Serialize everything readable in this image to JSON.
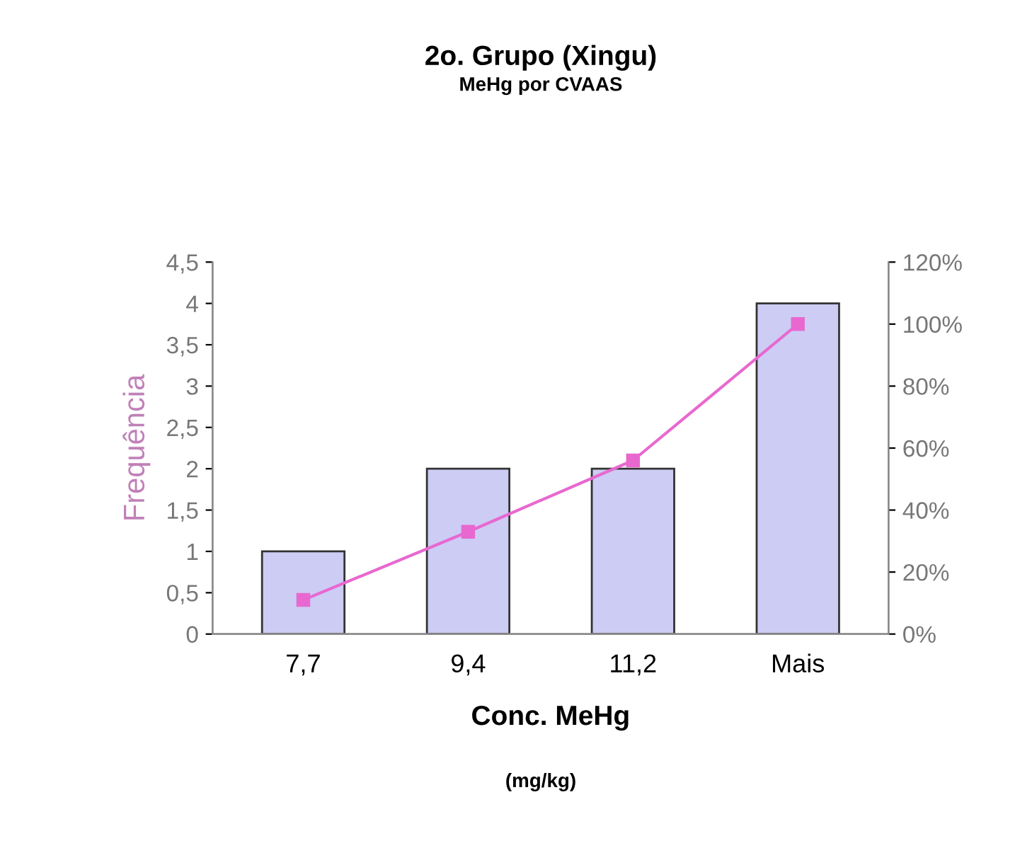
{
  "chart_data": {
    "type": "bar",
    "title": "2o. Grupo (Xingu)",
    "subtitle": "MeHg por CVAAS",
    "xlabel": "Conc. MeHg",
    "ylabel": "Frequência",
    "annotations": [
      "(mg/kg)"
    ],
    "categories": [
      "7,7",
      "9,4",
      "11,2",
      "Mais"
    ],
    "series": [
      {
        "color": "#ccccf4",
        "values": [
          1,
          2,
          2,
          4
        ]
      },
      {
        "type": "line",
        "axis": "y2",
        "color": "#e868d0",
        "values": [
          11,
          33,
          56,
          100
        ]
      }
    ],
    "ylim": [
      0,
      4.5
    ],
    "yticks": [
      0,
      {
        "value": 0.5,
        "label": "0,5"
      },
      1,
      {
        "value": 1.5,
        "label": "1,5"
      },
      2,
      {
        "value": 2.5,
        "label": "2,5"
      },
      3,
      {
        "value": 3.5,
        "label": "3,5"
      },
      4,
      {
        "value": 4.5,
        "label": "4,5"
      }
    ],
    "y2lim": [
      0,
      120
    ],
    "y2ticks": [
      {
        "value": 0,
        "label": "0%"
      },
      {
        "value": 20,
        "label": "20%"
      },
      {
        "value": 40,
        "label": "40%"
      },
      {
        "value": 60,
        "label": "60%"
      },
      {
        "value": 80,
        "label": "80%"
      },
      {
        "value": 100,
        "label": "100%"
      },
      {
        "value": 120,
        "label": "120%"
      }
    ],
    "marker": "square",
    "grid": false,
    "legend": false
  }
}
